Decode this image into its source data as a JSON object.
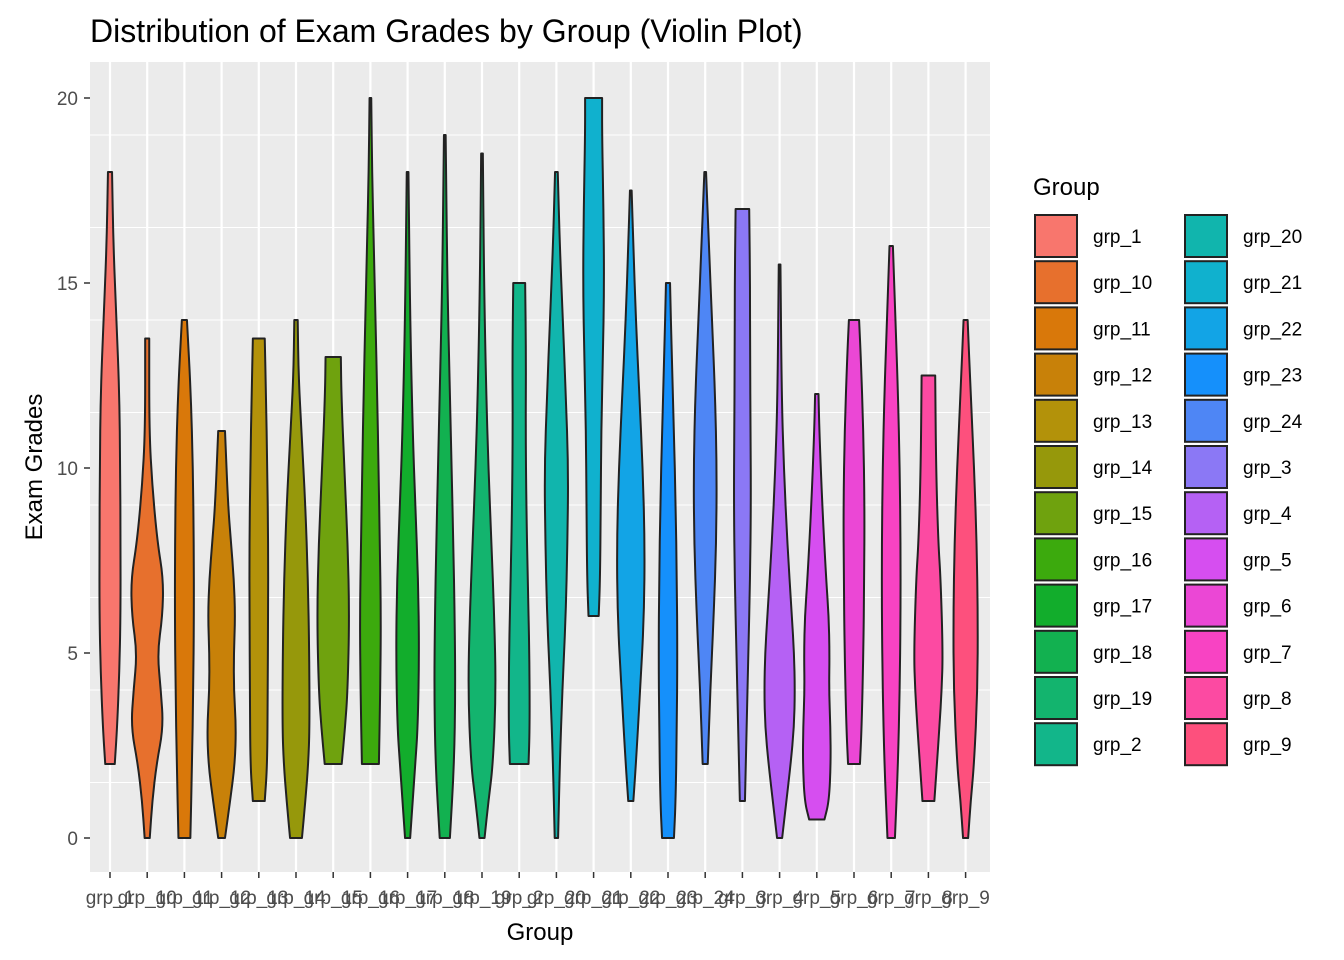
{
  "chart_data": {
    "type": "violin",
    "title": "Distribution of Exam Grades by Group (Violin Plot)",
    "xlabel": "Group",
    "ylabel": "Exam Grades",
    "ylim": [
      -1,
      21
    ],
    "yticks": [
      0,
      5,
      10,
      15,
      20
    ],
    "grid": true,
    "legend": {
      "title": "Group",
      "position": "right",
      "columns": 2
    },
    "categories": [
      "grp_1",
      "grp_10",
      "grp_11",
      "grp_12",
      "grp_13",
      "grp_14",
      "grp_15",
      "grp_16",
      "grp_17",
      "grp_18",
      "grp_19",
      "grp_2",
      "grp_20",
      "grp_21",
      "grp_22",
      "grp_23",
      "grp_24",
      "grp_3",
      "grp_4",
      "grp_5",
      "grp_6",
      "grp_7",
      "grp_8",
      "grp_9"
    ],
    "series": [
      {
        "name": "grp_1",
        "color": "#F8766D",
        "min": 2,
        "max": 18,
        "profile": [
          [
            2,
            0.28
          ],
          [
            3,
            0.42
          ],
          [
            4.5,
            0.55
          ],
          [
            6,
            0.62
          ],
          [
            8,
            0.62
          ],
          [
            10,
            0.6
          ],
          [
            12,
            0.55
          ],
          [
            14,
            0.38
          ],
          [
            16,
            0.2
          ],
          [
            18,
            0.12
          ]
        ]
      },
      {
        "name": "grp_10",
        "color": "#E7702D",
        "min": 0,
        "max": 13.5,
        "profile": [
          [
            0,
            0.15
          ],
          [
            1,
            0.3
          ],
          [
            2,
            0.55
          ],
          [
            3,
            0.95
          ],
          [
            4,
            0.8
          ],
          [
            5,
            0.6
          ],
          [
            6,
            0.9
          ],
          [
            7,
            0.95
          ],
          [
            8,
            0.6
          ],
          [
            9.5,
            0.3
          ],
          [
            11,
            0.12
          ],
          [
            13.5,
            0.12
          ]
        ]
      },
      {
        "name": "grp_11",
        "color": "#D9780A",
        "min": 0,
        "max": 14,
        "profile": [
          [
            0,
            0.35
          ],
          [
            2,
            0.45
          ],
          [
            4,
            0.52
          ],
          [
            6,
            0.56
          ],
          [
            8,
            0.55
          ],
          [
            10,
            0.5
          ],
          [
            12,
            0.38
          ],
          [
            14,
            0.15
          ]
        ]
      },
      {
        "name": "grp_12",
        "color": "#C88109",
        "min": 0,
        "max": 11,
        "profile": [
          [
            0,
            0.2
          ],
          [
            1,
            0.5
          ],
          [
            2,
            0.78
          ],
          [
            3,
            0.85
          ],
          [
            4,
            0.72
          ],
          [
            5,
            0.72
          ],
          [
            6,
            0.8
          ],
          [
            7,
            0.72
          ],
          [
            8,
            0.55
          ],
          [
            9,
            0.38
          ],
          [
            11,
            0.2
          ]
        ]
      },
      {
        "name": "grp_13",
        "color": "#B3920A",
        "min": 1,
        "max": 13.5,
        "profile": [
          [
            1,
            0.35
          ],
          [
            2,
            0.5
          ],
          [
            4,
            0.52
          ],
          [
            6,
            0.55
          ],
          [
            8,
            0.55
          ],
          [
            10,
            0.5
          ],
          [
            12,
            0.42
          ],
          [
            13.5,
            0.35
          ]
        ]
      },
      {
        "name": "grp_14",
        "color": "#96980B",
        "min": 0,
        "max": 14,
        "profile": [
          [
            0,
            0.35
          ],
          [
            1,
            0.55
          ],
          [
            2,
            0.72
          ],
          [
            3,
            0.8
          ],
          [
            5,
            0.78
          ],
          [
            7,
            0.7
          ],
          [
            9,
            0.55
          ],
          [
            11,
            0.32
          ],
          [
            12.5,
            0.15
          ],
          [
            14,
            0.1
          ]
        ]
      },
      {
        "name": "grp_15",
        "color": "#6FA20E",
        "min": 2,
        "max": 13,
        "profile": [
          [
            2,
            0.5
          ],
          [
            3,
            0.7
          ],
          [
            4,
            0.85
          ],
          [
            6,
            0.95
          ],
          [
            8,
            0.85
          ],
          [
            10,
            0.65
          ],
          [
            12,
            0.48
          ],
          [
            13,
            0.45
          ]
        ]
      },
      {
        "name": "grp_16",
        "color": "#3CAA0D",
        "min": 2,
        "max": 20,
        "profile": [
          [
            2,
            0.5
          ],
          [
            4,
            0.58
          ],
          [
            6,
            0.62
          ],
          [
            8,
            0.55
          ],
          [
            10,
            0.48
          ],
          [
            12,
            0.4
          ],
          [
            14,
            0.3
          ],
          [
            16,
            0.2
          ],
          [
            18,
            0.1
          ],
          [
            20,
            0.05
          ]
        ]
      },
      {
        "name": "grp_17",
        "color": "#12AD2C",
        "min": 0,
        "max": 18,
        "profile": [
          [
            0,
            0.15
          ],
          [
            1,
            0.3
          ],
          [
            2,
            0.45
          ],
          [
            3,
            0.6
          ],
          [
            5,
            0.68
          ],
          [
            7,
            0.62
          ],
          [
            9,
            0.45
          ],
          [
            11,
            0.3
          ],
          [
            14,
            0.15
          ],
          [
            18,
            0.05
          ]
        ]
      },
      {
        "name": "grp_18",
        "color": "#12B150",
        "min": 0,
        "max": 19,
        "profile": [
          [
            0,
            0.3
          ],
          [
            2,
            0.55
          ],
          [
            4,
            0.62
          ],
          [
            6,
            0.58
          ],
          [
            8,
            0.5
          ],
          [
            10,
            0.4
          ],
          [
            12,
            0.3
          ],
          [
            15,
            0.15
          ],
          [
            19,
            0.05
          ]
        ]
      },
      {
        "name": "grp_19",
        "color": "#13B46E",
        "min": 0,
        "max": 18.5,
        "profile": [
          [
            0,
            0.15
          ],
          [
            1,
            0.38
          ],
          [
            2,
            0.65
          ],
          [
            4,
            0.82
          ],
          [
            6,
            0.72
          ],
          [
            8,
            0.55
          ],
          [
            10,
            0.38
          ],
          [
            12,
            0.25
          ],
          [
            15,
            0.12
          ],
          [
            18.5,
            0.05
          ]
        ]
      },
      {
        "name": "grp_2",
        "color": "#12B68A",
        "min": 2,
        "max": 15,
        "profile": [
          [
            2,
            0.55
          ],
          [
            3,
            0.62
          ],
          [
            5,
            0.6
          ],
          [
            7,
            0.5
          ],
          [
            9,
            0.42
          ],
          [
            11,
            0.38
          ],
          [
            13,
            0.4
          ],
          [
            15,
            0.35
          ]
        ]
      },
      {
        "name": "grp_20",
        "color": "#11B5AD",
        "min": 0,
        "max": 18,
        "profile": [
          [
            0,
            0.1
          ],
          [
            2,
            0.2
          ],
          [
            4,
            0.35
          ],
          [
            6,
            0.55
          ],
          [
            8,
            0.65
          ],
          [
            10,
            0.7
          ],
          [
            12,
            0.55
          ],
          [
            14,
            0.38
          ],
          [
            16,
            0.2
          ],
          [
            18,
            0.08
          ]
        ]
      },
      {
        "name": "grp_21",
        "color": "#10B1CE",
        "min": 6,
        "max": 20,
        "profile": [
          [
            6,
            0.3
          ],
          [
            7,
            0.38
          ],
          [
            9,
            0.42
          ],
          [
            11,
            0.45
          ],
          [
            13,
            0.55
          ],
          [
            15,
            0.62
          ],
          [
            17,
            0.58
          ],
          [
            19,
            0.5
          ],
          [
            20,
            0.5
          ]
        ]
      },
      {
        "name": "grp_22",
        "color": "#12A4E6",
        "min": 1,
        "max": 17.5,
        "profile": [
          [
            1,
            0.15
          ],
          [
            2,
            0.3
          ],
          [
            4,
            0.55
          ],
          [
            6,
            0.78
          ],
          [
            8,
            0.82
          ],
          [
            10,
            0.7
          ],
          [
            12,
            0.5
          ],
          [
            14,
            0.3
          ],
          [
            16,
            0.15
          ],
          [
            17.5,
            0.05
          ]
        ]
      },
      {
        "name": "grp_23",
        "color": "#1590FB",
        "min": 0,
        "max": 15,
        "profile": [
          [
            0,
            0.35
          ],
          [
            1,
            0.45
          ],
          [
            3,
            0.52
          ],
          [
            5,
            0.55
          ],
          [
            7,
            0.52
          ],
          [
            9,
            0.45
          ],
          [
            11,
            0.35
          ],
          [
            13,
            0.22
          ],
          [
            15,
            0.12
          ]
        ]
      },
      {
        "name": "grp_24",
        "color": "#4E86F5",
        "min": 2,
        "max": 18,
        "profile": [
          [
            2,
            0.15
          ],
          [
            4,
            0.3
          ],
          [
            6,
            0.5
          ],
          [
            8,
            0.65
          ],
          [
            10,
            0.68
          ],
          [
            12,
            0.58
          ],
          [
            14,
            0.4
          ],
          [
            16,
            0.22
          ],
          [
            18,
            0.05
          ]
        ]
      },
      {
        "name": "grp_3",
        "color": "#8B78F5",
        "min": 1,
        "max": 17,
        "profile": [
          [
            1,
            0.15
          ],
          [
            3,
            0.25
          ],
          [
            5,
            0.35
          ],
          [
            7,
            0.45
          ],
          [
            9,
            0.5
          ],
          [
            11,
            0.48
          ],
          [
            13,
            0.45
          ],
          [
            15,
            0.45
          ],
          [
            17,
            0.4
          ]
        ]
      },
      {
        "name": "grp_4",
        "color": "#B561F4",
        "min": 0,
        "max": 15.5,
        "profile": [
          [
            0,
            0.15
          ],
          [
            1,
            0.4
          ],
          [
            2,
            0.65
          ],
          [
            3,
            0.85
          ],
          [
            4,
            0.9
          ],
          [
            5,
            0.85
          ],
          [
            6,
            0.72
          ],
          [
            8,
            0.45
          ],
          [
            10,
            0.25
          ],
          [
            12,
            0.12
          ],
          [
            15.5,
            0.05
          ]
        ]
      },
      {
        "name": "grp_5",
        "color": "#D64EF0",
        "min": 0.5,
        "max": 12,
        "profile": [
          [
            0.5,
            0.45
          ],
          [
            1,
            0.72
          ],
          [
            2,
            0.82
          ],
          [
            3,
            0.8
          ],
          [
            4,
            0.72
          ],
          [
            5,
            0.75
          ],
          [
            6,
            0.7
          ],
          [
            7,
            0.55
          ],
          [
            9,
            0.32
          ],
          [
            11,
            0.15
          ],
          [
            12,
            0.1
          ]
        ]
      },
      {
        "name": "grp_6",
        "color": "#EB47D5",
        "min": 2,
        "max": 14,
        "profile": [
          [
            2,
            0.35
          ],
          [
            3,
            0.45
          ],
          [
            5,
            0.55
          ],
          [
            7,
            0.6
          ],
          [
            9,
            0.62
          ],
          [
            11,
            0.55
          ],
          [
            13,
            0.4
          ],
          [
            14,
            0.3
          ]
        ]
      },
      {
        "name": "grp_7",
        "color": "#F843C3",
        "min": 0,
        "max": 16,
        "profile": [
          [
            0,
            0.22
          ],
          [
            2,
            0.4
          ],
          [
            4,
            0.5
          ],
          [
            6,
            0.55
          ],
          [
            8,
            0.55
          ],
          [
            10,
            0.5
          ],
          [
            12,
            0.4
          ],
          [
            14,
            0.25
          ],
          [
            16,
            0.1
          ]
        ]
      },
      {
        "name": "grp_8",
        "color": "#FC4AA2",
        "min": 1,
        "max": 12.5,
        "profile": [
          [
            1,
            0.35
          ],
          [
            2,
            0.5
          ],
          [
            3,
            0.65
          ],
          [
            4,
            0.78
          ],
          [
            5,
            0.85
          ],
          [
            7,
            0.72
          ],
          [
            8,
            0.58
          ],
          [
            10,
            0.45
          ],
          [
            12.5,
            0.4
          ]
        ]
      },
      {
        "name": "grp_9",
        "color": "#FD507D",
        "min": 0,
        "max": 14,
        "profile": [
          [
            0,
            0.15
          ],
          [
            1,
            0.3
          ],
          [
            2,
            0.5
          ],
          [
            4,
            0.7
          ],
          [
            6,
            0.72
          ],
          [
            8,
            0.65
          ],
          [
            10,
            0.5
          ],
          [
            12,
            0.3
          ],
          [
            14,
            0.12
          ]
        ]
      }
    ]
  }
}
